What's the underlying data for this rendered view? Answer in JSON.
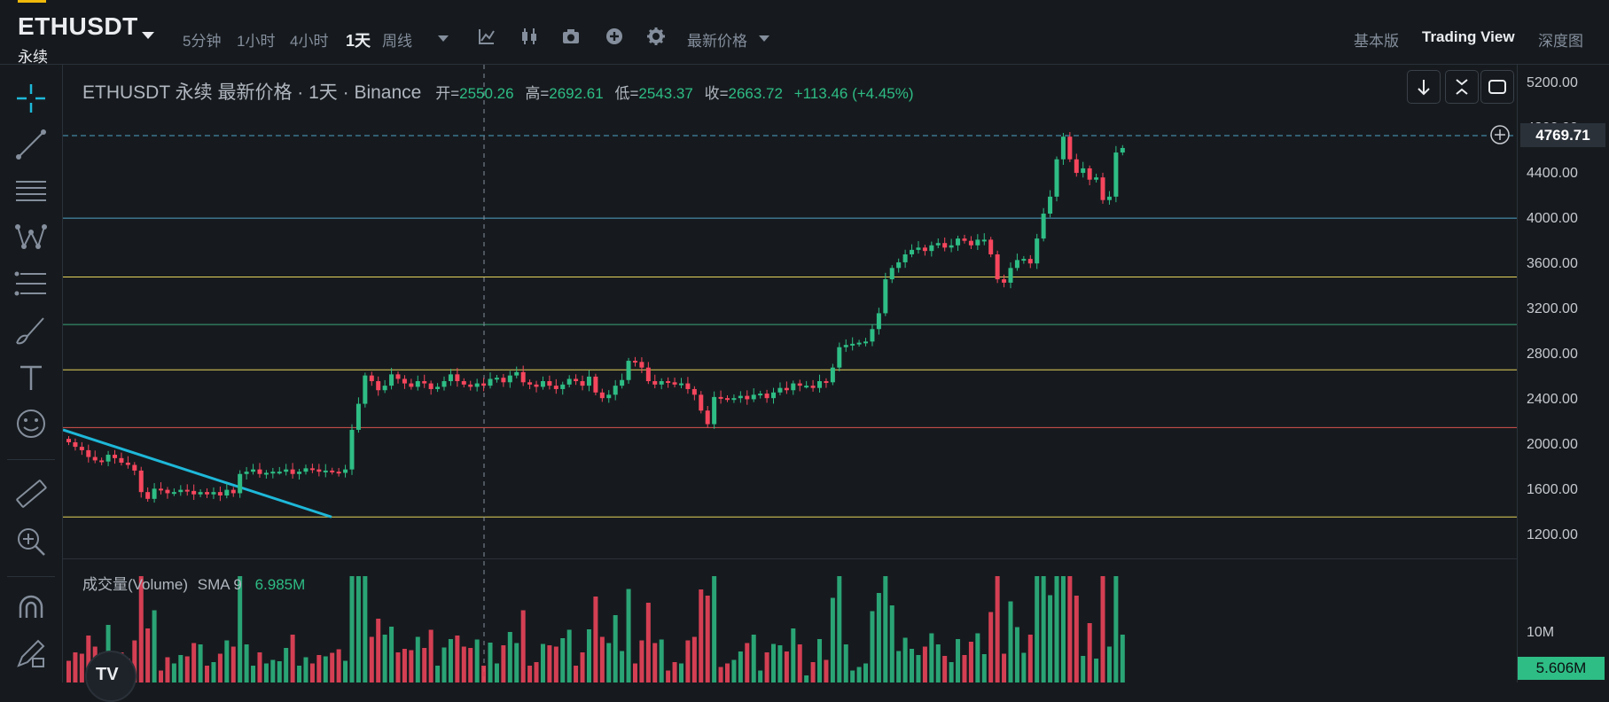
{
  "header": {
    "symbol": "ETHUSDT",
    "contract_type": "永续",
    "intervals": [
      "5分钟",
      "1小时",
      "4小时",
      "1天",
      "周线"
    ],
    "active_interval": "1天",
    "price_mode": "最新价格",
    "view_tabs": [
      "基本版",
      "Trading View",
      "深度图"
    ],
    "active_view": "Trading View",
    "accent_color": "#f0b90b"
  },
  "legend": {
    "title": "ETHUSDT 永续 最新价格 · 1天 · Binance",
    "open_label": "开=",
    "open": "2550.26",
    "high_label": "高=",
    "high": "2692.61",
    "low_label": "低=",
    "low": "2543.37",
    "close_label": "收=",
    "close": "2663.72",
    "change": "+113.46 (+4.45%)"
  },
  "price_axis": {
    "labels": [
      "5200.00",
      "4800.00",
      "4400.00",
      "4000.00",
      "3600.00",
      "3200.00",
      "2800.00",
      "2400.00",
      "2000.00",
      "1600.00",
      "1200.00"
    ],
    "current_price": "4769.71"
  },
  "volume": {
    "title": "成交量(Volume)",
    "sma_label": "SMA 9",
    "sma_value": "6.985M",
    "axis_label": "10M",
    "current_volume": "5.606M"
  },
  "colors": {
    "up": "#2ebd85",
    "down": "#f6465d",
    "trendline": "#1eb8d9",
    "hline_yellow": "#e6d35a",
    "hline_blue": "#4fa3c7",
    "hline_green": "#3aa37a",
    "hline_red": "#d9534f"
  },
  "icons": {
    "toolbar": [
      "indicator-icon",
      "candle-style-icon",
      "camera-icon",
      "add-icon",
      "settings-icon"
    ],
    "chart_buttons": [
      "arrow-down-icon",
      "collapse-icon",
      "fullscreen-icon"
    ],
    "left_tools": [
      "crosshair-icon",
      "trendline-icon",
      "horizontal-lines-icon",
      "pattern-icon",
      "fib-icon",
      "brush-icon",
      "text-icon",
      "emoji-icon",
      "ruler-icon",
      "zoom-in-icon",
      "magnet-icon",
      "lock-pencil-icon"
    ]
  },
  "chart_data": {
    "type": "candlestick",
    "ylim": [
      1100,
      5300
    ],
    "horizontal_levels": [
      4769.71,
      4040,
      3520,
      3100,
      2700,
      2190,
      1400
    ],
    "candles_close": [
      2060,
      2020,
      1990,
      1930,
      1900,
      1890,
      1950,
      1920,
      1880,
      1860,
      1810,
      1620,
      1560,
      1650,
      1640,
      1610,
      1620,
      1640,
      1630,
      1600,
      1620,
      1600,
      1620,
      1590,
      1640,
      1610,
      1780,
      1800,
      1820,
      1780,
      1790,
      1800,
      1800,
      1820,
      1780,
      1800,
      1830,
      1820,
      1800,
      1810,
      1800,
      1790,
      1820,
      2170,
      2400,
      2650,
      2600,
      2520,
      2560,
      2660,
      2620,
      2580,
      2550,
      2600,
      2580,
      2530,
      2550,
      2600,
      2660,
      2600,
      2570,
      2550,
      2580,
      2560,
      2620,
      2630,
      2590,
      2650,
      2680,
      2590,
      2570,
      2550,
      2600,
      2560,
      2530,
      2570,
      2620,
      2600,
      2560,
      2640,
      2500,
      2450,
      2480,
      2560,
      2610,
      2780,
      2770,
      2720,
      2600,
      2570,
      2600,
      2590,
      2570,
      2580,
      2530,
      2480,
      2340,
      2220,
      2460,
      2450,
      2440,
      2450,
      2470,
      2440,
      2480,
      2490,
      2450,
      2500,
      2540,
      2520,
      2580,
      2560,
      2560,
      2540,
      2600,
      2590,
      2720,
      2900,
      2920,
      2930,
      2940,
      2950,
      3060,
      3200,
      3500,
      3600,
      3650,
      3720,
      3760,
      3780,
      3750,
      3800,
      3820,
      3780,
      3800,
      3860,
      3840,
      3800,
      3850,
      3850,
      3720,
      3500,
      3470,
      3600,
      3670,
      3680,
      3640,
      3860,
      4080,
      4230,
      4560,
      4760,
      4560,
      4440,
      4480,
      4380,
      4400,
      4200,
      4230,
      4620,
      4660
    ]
  }
}
